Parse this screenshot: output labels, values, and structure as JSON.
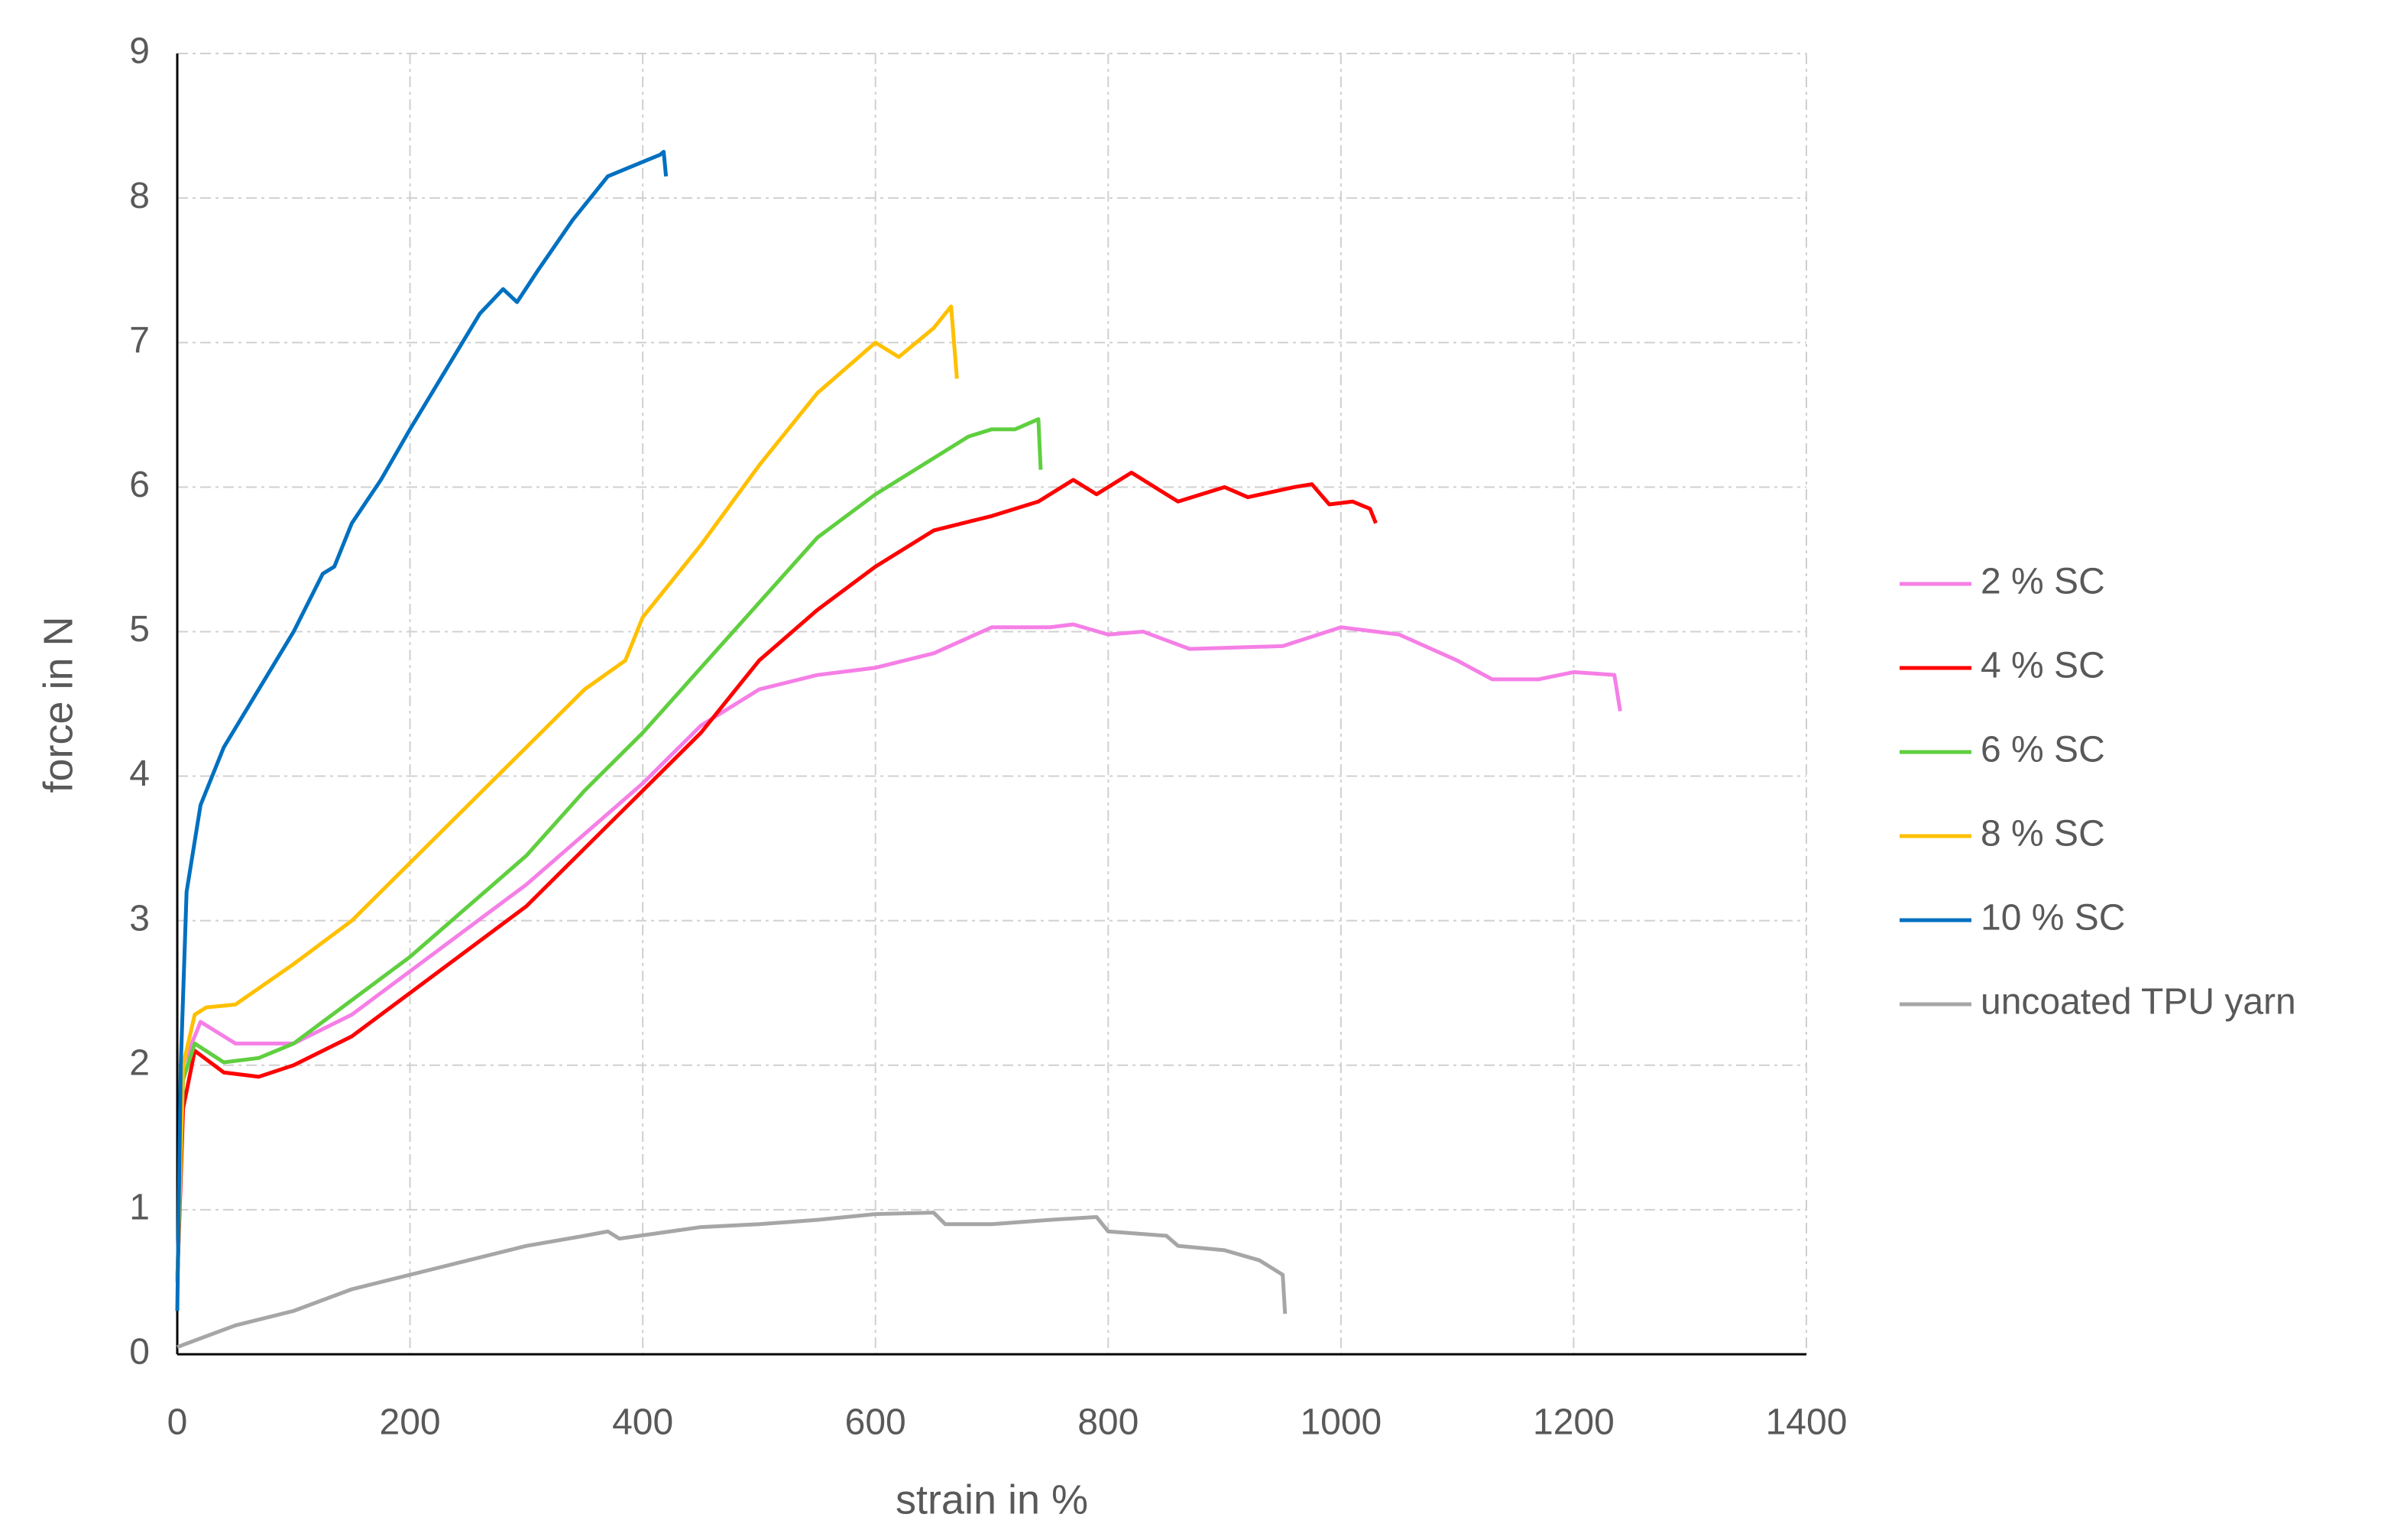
{
  "chart_data": {
    "type": "line",
    "xlabel": "strain in %",
    "ylabel": "force in N",
    "xlim": [
      0,
      1400
    ],
    "xticks": [
      0,
      200,
      400,
      600,
      800,
      1000,
      1200,
      1400
    ],
    "ylim": [
      0,
      9
    ],
    "yticks": [
      0,
      1,
      2,
      3,
      4,
      5,
      6,
      7,
      8,
      9
    ],
    "grid": true,
    "legend": "right",
    "series": [
      {
        "name": "2 % SC",
        "color": "#f57fe6",
        "x": [
          0,
          5,
          20,
          50,
          100,
          150,
          200,
          250,
          300,
          350,
          400,
          450,
          500,
          550,
          600,
          650,
          700,
          750,
          770,
          800,
          830,
          870,
          950,
          1000,
          1050,
          1100,
          1130,
          1170,
          1200,
          1235,
          1240
        ],
        "values": [
          0.5,
          2.0,
          2.3,
          2.15,
          2.15,
          2.35,
          2.65,
          2.95,
          3.25,
          3.6,
          3.95,
          4.35,
          4.6,
          4.7,
          4.75,
          4.85,
          5.03,
          5.03,
          5.05,
          4.98,
          5.0,
          4.88,
          4.9,
          5.03,
          4.98,
          4.8,
          4.67,
          4.67,
          4.72,
          4.7,
          4.45
        ]
      },
      {
        "name": "4 % SC",
        "color": "#ff0000",
        "x": [
          0,
          5,
          15,
          40,
          70,
          100,
          150,
          200,
          250,
          300,
          350,
          400,
          450,
          500,
          550,
          600,
          650,
          700,
          740,
          770,
          790,
          820,
          840,
          860,
          900,
          920,
          960,
          975,
          990,
          1010,
          1025,
          1030
        ],
        "values": [
          0.5,
          1.7,
          2.1,
          1.95,
          1.92,
          2.0,
          2.2,
          2.5,
          2.8,
          3.1,
          3.5,
          3.9,
          4.3,
          4.8,
          5.15,
          5.45,
          5.7,
          5.8,
          5.9,
          6.05,
          5.95,
          6.1,
          6.0,
          5.9,
          6.0,
          5.93,
          6.0,
          6.02,
          5.88,
          5.9,
          5.85,
          5.75
        ]
      },
      {
        "name": "6 % SC",
        "color": "#5fcf3f",
        "x": [
          0,
          5,
          15,
          40,
          70,
          100,
          150,
          200,
          250,
          300,
          350,
          400,
          450,
          500,
          550,
          600,
          650,
          680,
          700,
          720,
          740,
          742
        ],
        "values": [
          0.5,
          1.9,
          2.15,
          2.02,
          2.05,
          2.15,
          2.45,
          2.75,
          3.1,
          3.45,
          3.9,
          4.3,
          4.75,
          5.2,
          5.65,
          5.95,
          6.2,
          6.35,
          6.4,
          6.4,
          6.47,
          6.12
        ]
      },
      {
        "name": "8 % SC",
        "color": "#ffc000",
        "x": [
          0,
          5,
          15,
          25,
          50,
          100,
          150,
          200,
          250,
          300,
          350,
          385,
          400,
          450,
          500,
          550,
          600,
          620,
          650,
          665,
          670
        ],
        "values": [
          0.5,
          2.0,
          2.35,
          2.4,
          2.42,
          2.7,
          3.0,
          3.4,
          3.8,
          4.2,
          4.6,
          4.8,
          5.1,
          5.6,
          6.15,
          6.65,
          7.0,
          6.9,
          7.1,
          7.25,
          6.75
        ]
      },
      {
        "name": "10 % SC",
        "color": "#0070c0",
        "x": [
          0,
          3,
          8,
          20,
          40,
          70,
          100,
          125,
          135,
          150,
          175,
          200,
          230,
          260,
          280,
          292,
          310,
          340,
          370,
          400,
          415,
          418,
          420
        ],
        "values": [
          0.3,
          2.0,
          3.2,
          3.8,
          4.2,
          4.6,
          5.0,
          5.4,
          5.45,
          5.75,
          6.05,
          6.4,
          6.8,
          7.2,
          7.37,
          7.28,
          7.5,
          7.85,
          8.15,
          8.25,
          8.3,
          8.32,
          8.15
        ]
      },
      {
        "name": "uncoated TPU yarn",
        "color": "#a6a6a6",
        "x": [
          0,
          50,
          100,
          150,
          200,
          250,
          300,
          350,
          370,
          380,
          450,
          500,
          550,
          600,
          650,
          660,
          700,
          750,
          790,
          800,
          850,
          860,
          900,
          930,
          950,
          952
        ],
        "values": [
          0.05,
          0.2,
          0.3,
          0.45,
          0.55,
          0.65,
          0.75,
          0.82,
          0.85,
          0.8,
          0.88,
          0.9,
          0.93,
          0.97,
          0.98,
          0.9,
          0.9,
          0.93,
          0.95,
          0.85,
          0.82,
          0.75,
          0.72,
          0.65,
          0.55,
          0.28
        ]
      }
    ]
  }
}
